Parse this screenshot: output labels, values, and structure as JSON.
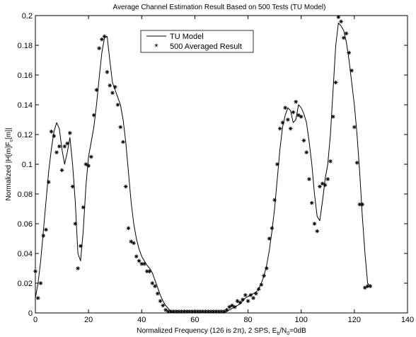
{
  "chart_data": {
    "type": "line",
    "title": "Average Channel Estimation Result Based on 500 Tests (TU Model)",
    "xlabel": "Normalized Frequency (126 is 2π), 2 SPS, E",
    "xlabel_sub1": "b",
    "xlabel_mid": "/N",
    "xlabel_sub2": "0",
    "xlabel_end": "=0dB",
    "ylabel_main": "Normalized |H[m]F",
    "ylabel_sub": "c",
    "ylabel_end": "[m]|",
    "xlim": [
      0,
      140
    ],
    "ylim": [
      0,
      0.2
    ],
    "x_ticks": [
      0,
      20,
      40,
      60,
      80,
      100,
      120,
      140
    ],
    "y_ticks": [
      0,
      0.02,
      0.04,
      0.06,
      0.08,
      0.1,
      0.12,
      0.14,
      0.16,
      0.18,
      0.2
    ],
    "x_tick_labels": [
      "0",
      "20",
      "40",
      "60",
      "80",
      "100",
      "120",
      "140"
    ],
    "y_tick_labels": [
      "0",
      "0.02",
      "0.04",
      "0.06",
      "0.08",
      "0.1",
      "0.12",
      "0.14",
      "0.16",
      "0.18",
      "0.2"
    ],
    "grid": false,
    "legend_position": "top-center",
    "series": [
      {
        "name": "TU Model",
        "style": "line",
        "color": "#000000",
        "x": [
          0,
          1,
          2,
          3,
          4,
          5,
          6,
          7,
          8,
          9,
          10,
          11,
          12,
          13,
          14,
          15,
          16,
          17,
          18,
          19,
          20,
          21,
          22,
          23,
          24,
          25,
          26,
          27,
          28,
          29,
          30,
          31,
          32,
          33,
          34,
          35,
          36,
          37,
          38,
          39,
          40,
          41,
          42,
          43,
          44,
          45,
          46,
          47,
          48,
          49,
          50,
          51,
          52,
          53,
          54,
          55,
          56,
          57,
          58,
          59,
          60,
          61,
          62,
          63,
          64,
          65,
          66,
          67,
          68,
          69,
          70,
          71,
          72,
          73,
          74,
          75,
          76,
          77,
          78,
          79,
          80,
          81,
          82,
          83,
          84,
          85,
          86,
          87,
          88,
          89,
          90,
          91,
          92,
          93,
          94,
          95,
          96,
          97,
          98,
          99,
          100,
          101,
          102,
          103,
          104,
          105,
          106,
          107,
          108,
          109,
          110,
          111,
          112,
          113,
          114,
          115,
          116,
          117,
          118,
          119,
          120,
          121,
          122,
          123,
          124,
          125,
          126
        ],
        "y": [
          0.01,
          0.02,
          0.035,
          0.055,
          0.075,
          0.095,
          0.11,
          0.122,
          0.128,
          0.124,
          0.11,
          0.1,
          0.108,
          0.118,
          0.1,
          0.075,
          0.04,
          0.035,
          0.055,
          0.085,
          0.105,
          0.115,
          0.125,
          0.14,
          0.158,
          0.175,
          0.185,
          0.186,
          0.17,
          0.155,
          0.15,
          0.145,
          0.14,
          0.13,
          0.115,
          0.095,
          0.075,
          0.06,
          0.05,
          0.043,
          0.038,
          0.035,
          0.032,
          0.03,
          0.027,
          0.022,
          0.017,
          0.012,
          0.008,
          0.005,
          0.003,
          0.001,
          0.0,
          0.0,
          0.0,
          0.0,
          0.0,
          0.0,
          0.0,
          0.0,
          0.0,
          0.0,
          0.0,
          0.0,
          0.0,
          0.0,
          0.0,
          0.0,
          0.0,
          0.0,
          0.0,
          0.0,
          0.001,
          0.002,
          0.003,
          0.004,
          0.005,
          0.006,
          0.008,
          0.01,
          0.011,
          0.012,
          0.013,
          0.014,
          0.016,
          0.02,
          0.025,
          0.032,
          0.042,
          0.055,
          0.07,
          0.09,
          0.11,
          0.125,
          0.133,
          0.138,
          0.136,
          0.128,
          0.13,
          0.14,
          0.138,
          0.134,
          0.128,
          0.115,
          0.1,
          0.08,
          0.065,
          0.062,
          0.075,
          0.09,
          0.1,
          0.12,
          0.15,
          0.18,
          0.195,
          0.193,
          0.19,
          0.182,
          0.17,
          0.155,
          0.14,
          0.12,
          0.095,
          0.065,
          0.04,
          0.02,
          0.018
        ]
      },
      {
        "name": "500 Averaged Result",
        "style": "marker",
        "marker": "*",
        "color": "#000000",
        "x": [
          0,
          1,
          2,
          3,
          4,
          5,
          6,
          7,
          8,
          9,
          10,
          11,
          12,
          13,
          14,
          15,
          16,
          17,
          18,
          19,
          20,
          21,
          22,
          23,
          24,
          25,
          26,
          27,
          28,
          29,
          30,
          31,
          32,
          33,
          34,
          35,
          36,
          37,
          38,
          39,
          40,
          41,
          42,
          43,
          44,
          45,
          46,
          47,
          48,
          49,
          50,
          51,
          52,
          53,
          54,
          55,
          56,
          57,
          58,
          59,
          60,
          61,
          62,
          63,
          64,
          65,
          66,
          67,
          68,
          69,
          70,
          71,
          72,
          73,
          74,
          75,
          76,
          77,
          78,
          79,
          80,
          81,
          82,
          83,
          84,
          85,
          86,
          87,
          88,
          89,
          90,
          91,
          92,
          93,
          94,
          95,
          96,
          97,
          98,
          99,
          100,
          101,
          102,
          103,
          104,
          105,
          106,
          107,
          108,
          109,
          110,
          111,
          112,
          113,
          114,
          115,
          116,
          117,
          118,
          119,
          120,
          121,
          122,
          123,
          124,
          125,
          126
        ],
        "y": [
          0.028,
          0.01,
          0.02,
          0.052,
          0.056,
          0.088,
          0.122,
          0.119,
          0.108,
          0.112,
          0.096,
          0.112,
          0.114,
          0.121,
          0.085,
          0.06,
          0.03,
          0.045,
          0.071,
          0.1,
          0.099,
          0.105,
          0.133,
          0.15,
          0.178,
          0.184,
          0.186,
          0.162,
          0.153,
          0.148,
          0.152,
          0.14,
          0.125,
          0.115,
          0.085,
          0.057,
          0.048,
          0.047,
          0.038,
          0.035,
          0.033,
          0.033,
          0.028,
          0.028,
          0.02,
          0.018,
          0.013,
          0.008,
          0.005,
          0.002,
          0.001,
          0.001,
          0.001,
          0.001,
          0.001,
          0.001,
          0.001,
          0.001,
          0.001,
          0.001,
          0.001,
          0.001,
          0.001,
          0.001,
          0.001,
          0.001,
          0.001,
          0.001,
          0.001,
          0.001,
          0.001,
          0.001,
          0.002,
          0.004,
          0.005,
          0.004,
          0.008,
          0.007,
          0.009,
          0.012,
          0.008,
          0.012,
          0.01,
          0.013,
          0.016,
          0.019,
          0.025,
          0.03,
          0.05,
          0.057,
          0.076,
          0.1,
          0.124,
          0.128,
          0.138,
          0.13,
          0.124,
          0.135,
          0.142,
          0.133,
          0.132,
          0.116,
          0.108,
          0.09,
          0.074,
          0.06,
          0.055,
          0.085,
          0.087,
          0.086,
          0.09,
          0.102,
          0.132,
          0.155,
          0.199,
          0.196,
          0.185,
          0.188,
          0.175,
          0.163,
          0.125,
          0.101,
          0.073,
          0.073,
          0.017,
          0.018,
          0.018
        ]
      }
    ]
  }
}
